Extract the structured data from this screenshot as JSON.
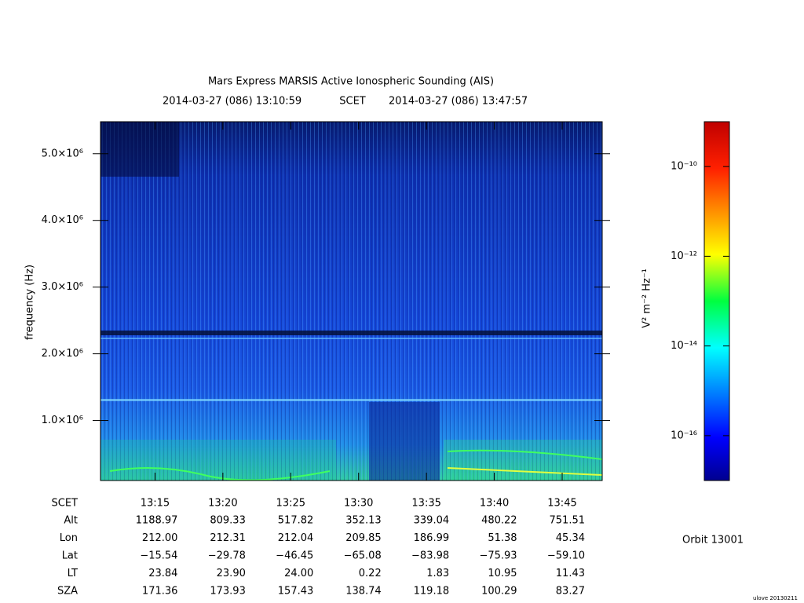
{
  "chart_data": {
    "type": "spectrogram",
    "title": "Mars Express MARSIS Active Ionospheric Sounding (AIS)",
    "start_label": "2014-03-27 (086) 13:10:59",
    "time_system": "SCET",
    "end_label": "2014-03-27 (086) 13:47:57",
    "ylabel": "frequency (Hz)",
    "ylim": [
      100000,
      5480000
    ],
    "yticks": [
      {
        "value": 1000000,
        "label": "1.0×10⁶"
      },
      {
        "value": 2000000,
        "label": "2.0×10⁶"
      },
      {
        "value": 3000000,
        "label": "3.0×10⁶"
      },
      {
        "value": 4000000,
        "label": "4.0×10⁶"
      },
      {
        "value": 5000000,
        "label": "5.0×10⁶"
      }
    ],
    "xlim": [
      47459,
      49677
    ],
    "xticks": [
      {
        "value": 47700,
        "label": "13:15"
      },
      {
        "value": 48000,
        "label": "13:20"
      },
      {
        "value": 48300,
        "label": "13:25"
      },
      {
        "value": 48600,
        "label": "13:30"
      },
      {
        "value": 48900,
        "label": "13:35"
      },
      {
        "value": 49200,
        "label": "13:40"
      },
      {
        "value": 49500,
        "label": "13:45"
      }
    ],
    "xticks_row_label": "SCET",
    "ephemeris": [
      {
        "label": "Alt",
        "values": [
          "1188.97",
          "809.33",
          "517.82",
          "352.13",
          "339.04",
          "480.22",
          "751.51"
        ]
      },
      {
        "label": "Lon",
        "values": [
          "212.00",
          "212.31",
          "212.04",
          "209.85",
          "186.99",
          "51.38",
          "45.34"
        ]
      },
      {
        "label": "Lat",
        "values": [
          "−15.54",
          "−29.78",
          "−46.45",
          "−65.08",
          "−83.98",
          "−75.93",
          "−59.10"
        ]
      },
      {
        "label": "LT",
        "values": [
          "23.84",
          "23.90",
          "24.00",
          "0.22",
          "1.83",
          "10.95",
          "11.43"
        ]
      },
      {
        "label": "SZA",
        "values": [
          "171.36",
          "173.93",
          "157.43",
          "138.74",
          "119.18",
          "100.29",
          "83.27"
        ]
      }
    ],
    "colorbar_label": "V² m⁻² Hz⁻¹",
    "zlog": true,
    "zlim": [
      1e-17,
      1e-09
    ],
    "zticks": [
      {
        "value": 1e-10,
        "label": "10⁻¹⁰"
      },
      {
        "value": 1e-12,
        "label": "10⁻¹²"
      },
      {
        "value": 1e-14,
        "label": "10⁻¹⁴"
      },
      {
        "value": 1e-16,
        "label": "10⁻¹⁶"
      }
    ],
    "orbit": "Orbit 13001",
    "footer": "ulove 20130211"
  }
}
